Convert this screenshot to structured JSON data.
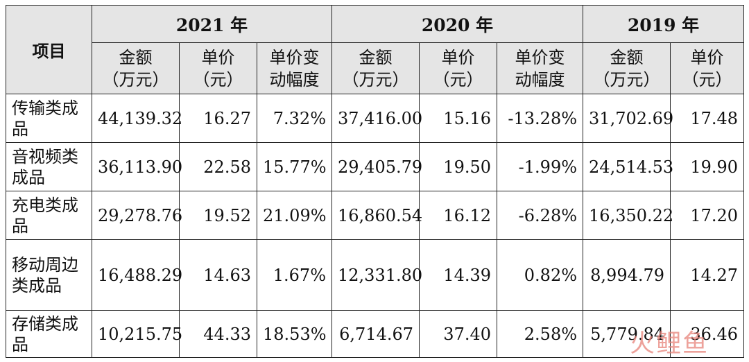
{
  "table": {
    "item_header": "项目",
    "years": [
      "2021 年",
      "2020 年",
      "2019 年"
    ],
    "subheaders": {
      "amount": [
        "金额",
        "（万元）"
      ],
      "price": [
        "单价",
        "（元）"
      ],
      "change": [
        "单价变",
        "动幅度"
      ]
    },
    "rows": [
      {
        "name": "传输类成品",
        "values": [
          "44,139.32",
          "16.27",
          "7.32%",
          "37,416.00",
          "15.16",
          "-13.28%",
          "31,702.69",
          "17.48"
        ]
      },
      {
        "name": "音视频类成品",
        "values": [
          "36,113.90",
          "22.58",
          "15.77%",
          "29,405.79",
          "19.50",
          "-1.99%",
          "24,514.53",
          "19.90"
        ]
      },
      {
        "name": "充电类成品",
        "values": [
          "29,278.76",
          "19.52",
          "21.09%",
          "16,860.54",
          "16.12",
          "-6.28%",
          "16,350.22",
          "17.20"
        ]
      },
      {
        "name": "移动周边类成品",
        "values": [
          "16,488.29",
          "14.63",
          "1.67%",
          "12,331.80",
          "14.39",
          "0.82%",
          "8,994.79",
          "14.27"
        ]
      },
      {
        "name": "存储类成品",
        "values": [
          "10,215.75",
          "44.33",
          "18.53%",
          "6,714.67",
          "37.40",
          "2.58%",
          "5,779.84",
          "36.46"
        ]
      }
    ]
  },
  "watermark": {
    "text": "火鲤鱼"
  }
}
